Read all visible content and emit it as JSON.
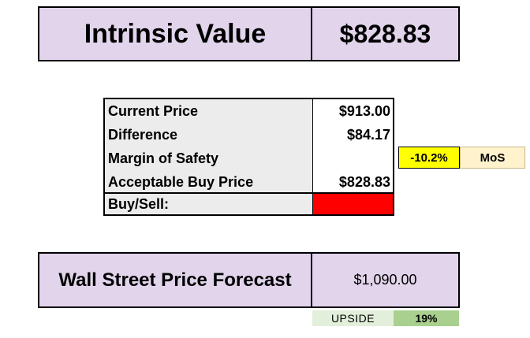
{
  "intrinsic": {
    "label": "Intrinsic Value",
    "value": "$828.83"
  },
  "table": {
    "rows": [
      {
        "label": "Current Price",
        "value": "$913.00"
      },
      {
        "label": "Difference",
        "value": "$84.17"
      },
      {
        "label": "Margin of Safety",
        "value": ""
      },
      {
        "label": "Acceptable Buy Price",
        "value": "$828.83"
      },
      {
        "label": "Buy/Sell:",
        "value": ""
      }
    ]
  },
  "margin_of_safety": {
    "value": "-10.2%",
    "label": "MoS"
  },
  "forecast": {
    "label": "Wall Street Price Forecast",
    "value": "$1,090.00",
    "upside_label": "UPSIDE",
    "upside_value": "19%"
  },
  "colors": {
    "header_fill": "#e1d4eb",
    "label_fill": "#ececec",
    "buy_sell_indicator": "#ff0000",
    "mos_value_fill": "#ffff00",
    "mos_label_fill": "#fff2cc",
    "upside_label_fill": "#e2efda",
    "upside_value_fill": "#a9d08e"
  }
}
